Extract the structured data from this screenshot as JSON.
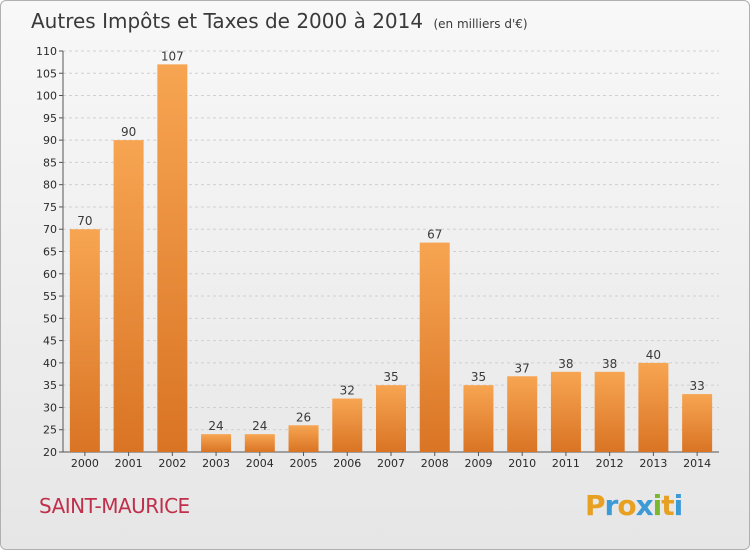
{
  "header": {
    "title": "Autres Impôts et Taxes de 2000 à 2014",
    "subtitle": "(en milliers d'€)"
  },
  "footer": {
    "commune": "SAINT-MAURICE",
    "logo": "Proxiti"
  },
  "colors": {
    "bar_light": "#f7a552",
    "bar_dark": "#d97424",
    "grid": "#d0d0d0",
    "commune": "#c0304a"
  },
  "chart_data": {
    "type": "bar",
    "title": "Autres Impôts et Taxes de 2000 à 2014",
    "subtitle": "(en milliers d'€)",
    "categories": [
      "2000",
      "2001",
      "2002",
      "2003",
      "2004",
      "2005",
      "2006",
      "2007",
      "2008",
      "2009",
      "2010",
      "2011",
      "2012",
      "2013",
      "2014"
    ],
    "values": [
      70,
      90,
      107,
      24,
      24,
      26,
      32,
      35,
      67,
      35,
      37,
      38,
      38,
      40,
      33
    ],
    "ylim": [
      20,
      110
    ],
    "yticks": [
      20,
      25,
      30,
      35,
      40,
      45,
      50,
      55,
      60,
      65,
      70,
      75,
      80,
      85,
      90,
      95,
      100,
      105,
      110
    ],
    "grid": true,
    "legend": "none"
  }
}
